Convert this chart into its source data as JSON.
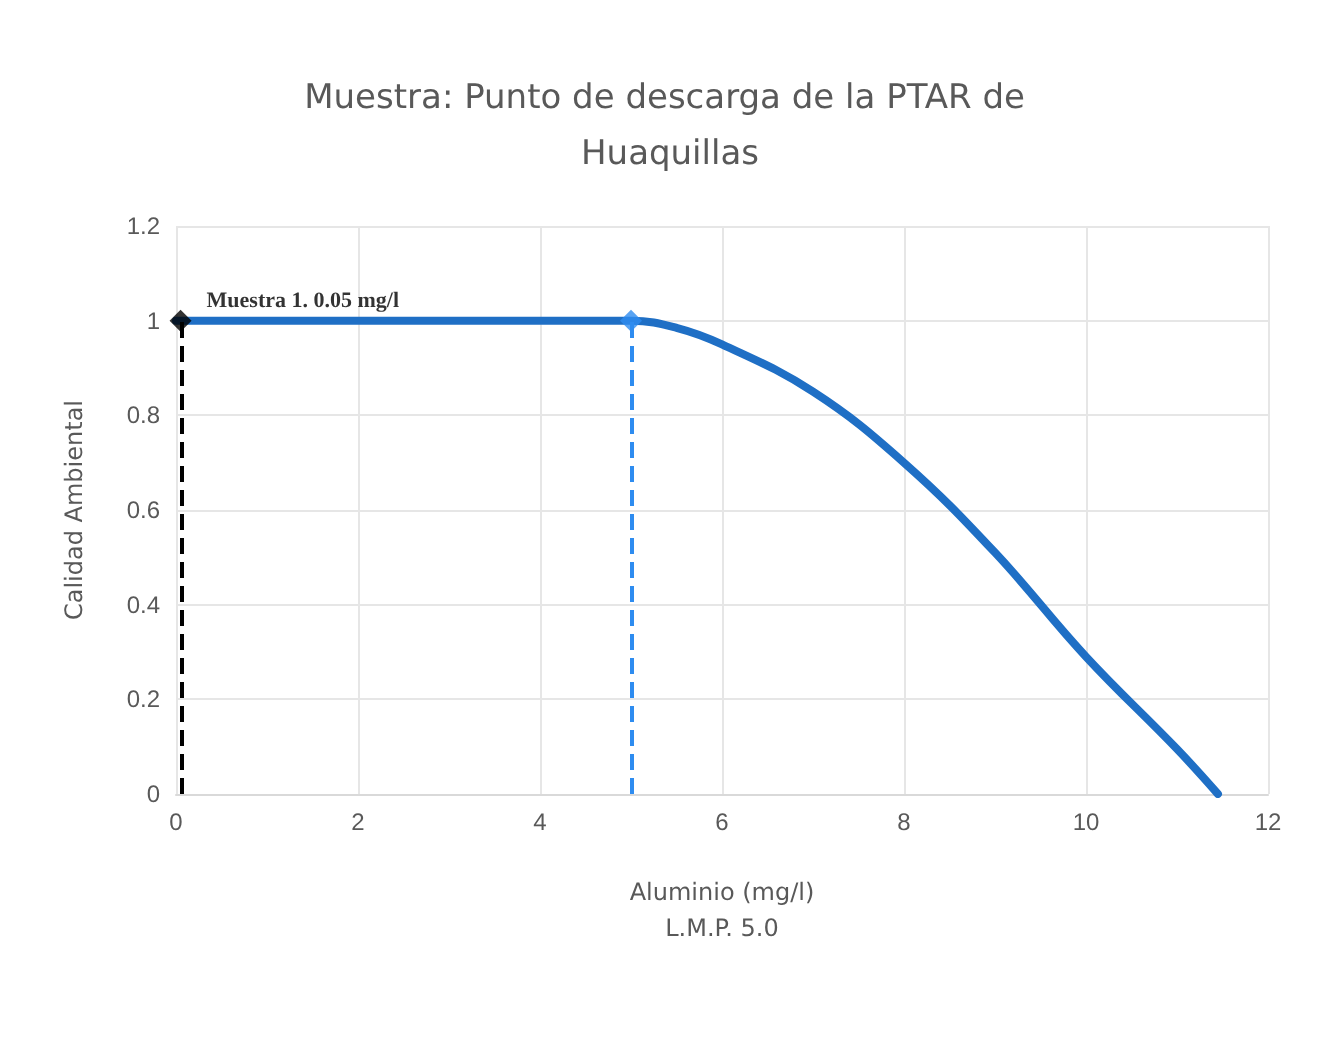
{
  "chart_data": {
    "type": "line",
    "title": "Muestra: Punto de descarga de la PTAR de Huaquillas",
    "xlabel": "Aluminio (mg/l)\nL.M.P. 5.0",
    "ylabel": "Calidad Ambiental",
    "xlim": [
      0,
      12
    ],
    "xticks": [
      0,
      2,
      4,
      6,
      8,
      10,
      12
    ],
    "ylim": [
      0,
      1.2
    ],
    "yticks": [
      0,
      0.2,
      0.4,
      0.6,
      0.8,
      1,
      1.2
    ],
    "grid": true,
    "series": [
      {
        "color": "#1f6fc5",
        "marker": "none",
        "line_style": "solid",
        "x": [
          0,
          1,
          2,
          3,
          4,
          5,
          5.5,
          6,
          7,
          8,
          9,
          10,
          11,
          11.45
        ],
        "values": [
          1,
          1,
          1,
          1,
          1,
          1,
          0.985,
          0.95,
          0.85,
          0.7,
          0.51,
          0.29,
          0.095,
          0
        ]
      },
      {
        "type": "scatter",
        "color": "#000000",
        "marker": "diamond",
        "x": [
          0.05
        ],
        "values": [
          1
        ]
      },
      {
        "type": "scatter",
        "color": "#2e8cf0",
        "marker": "diamond",
        "x": [
          5
        ],
        "values": [
          1
        ]
      }
    ],
    "ref_lines": [
      {
        "axis": "x",
        "value": 0.05,
        "color": "#000000",
        "line_style": "dashed"
      },
      {
        "axis": "x",
        "value": 5,
        "color": "#2e8cf0",
        "line_style": "dashed"
      }
    ],
    "annotations": [
      {
        "text": "Muestra 1. 0.05 mg/l",
        "x": 0.05,
        "y": 1
      }
    ]
  }
}
